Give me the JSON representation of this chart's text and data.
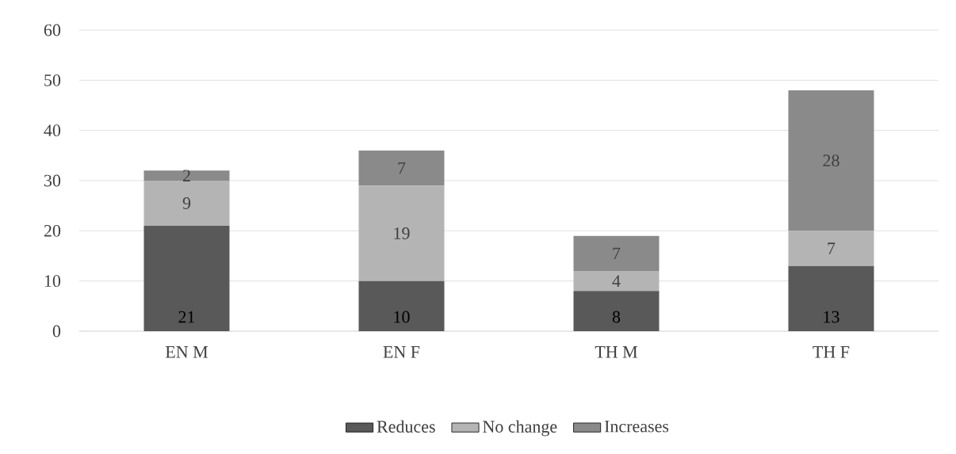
{
  "chart_data": {
    "type": "bar",
    "stacked": true,
    "categories": [
      "EN M",
      "EN F",
      "TH M",
      "TH F"
    ],
    "series": [
      {
        "name": "Reduces",
        "color": "#595959",
        "values": [
          21,
          10,
          8,
          13
        ]
      },
      {
        "name": "No change",
        "color": "#b4b4b4",
        "values": [
          9,
          19,
          4,
          7
        ]
      },
      {
        "name": "Increases",
        "color": "#8a8a8a",
        "values": [
          2,
          7,
          7,
          28
        ]
      }
    ],
    "ylim": [
      0,
      60
    ],
    "yticks": [
      0,
      10,
      20,
      30,
      40,
      50,
      60
    ],
    "grid": "y",
    "legend": "bottom",
    "data_labels": true
  }
}
